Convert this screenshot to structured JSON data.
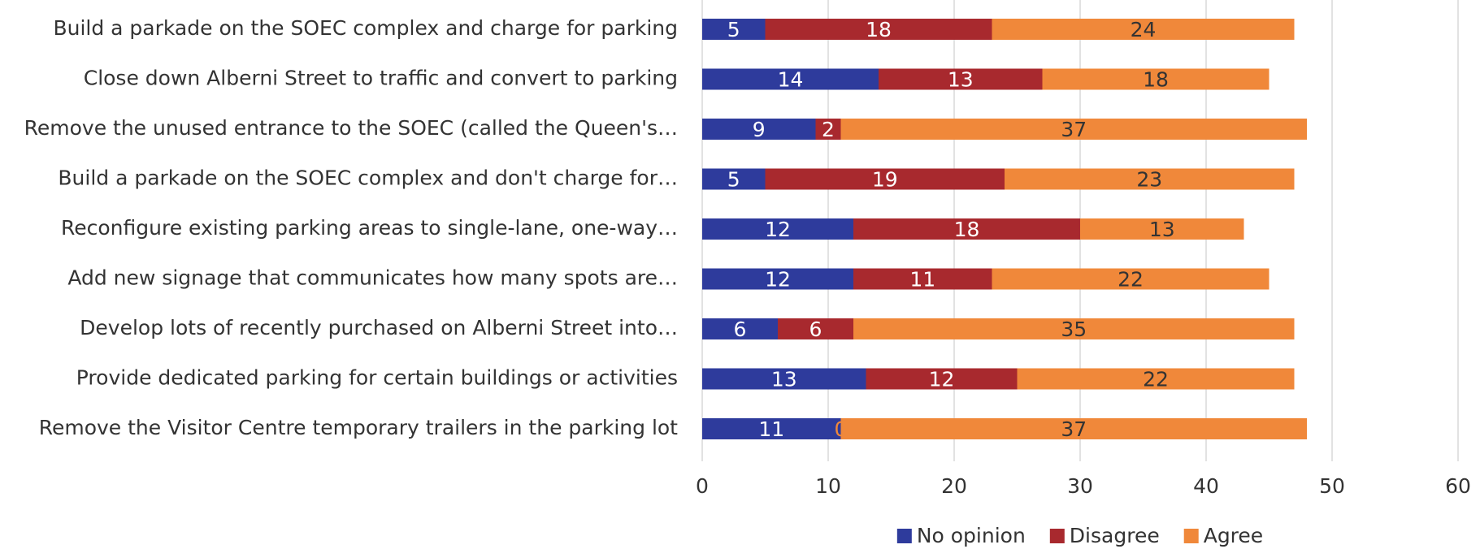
{
  "chart_data": {
    "type": "stacked_barh",
    "categories": [
      "Build a parkade on the SOEC complex and charge for parking",
      "Close down Alberni Street to traffic and convert to parking",
      "Remove the unused entrance to the SOEC (called the Queen's…",
      "Build a parkade on the SOEC complex and don't charge for…",
      "Reconfigure existing parking areas to single-lane, one-way…",
      "Add new signage that communicates how many spots are…",
      "Develop lots of recently purchased on Alberni Street into…",
      "Provide dedicated parking for certain buildings or activities",
      "Remove the Visitor Centre temporary trailers in the parking lot"
    ],
    "series": [
      {
        "name": "No opinion",
        "color": "#2e3b9c",
        "label_color": "#ffffff",
        "values": [
          5,
          14,
          9,
          5,
          12,
          12,
          6,
          13,
          11
        ]
      },
      {
        "name": "Disagree",
        "color": "#a8292e",
        "label_color": "#ffffff",
        "values": [
          18,
          13,
          2,
          19,
          18,
          11,
          6,
          12,
          0
        ]
      },
      {
        "name": "Agree",
        "color": "#f0883a",
        "label_color": "#333333",
        "values": [
          24,
          18,
          37,
          23,
          13,
          22,
          35,
          22,
          37
        ]
      }
    ],
    "xlim": [
      0,
      60
    ],
    "xticks": [
      0,
      10,
      20,
      30,
      40,
      50,
      60
    ],
    "grid": true,
    "legend": "bottom"
  }
}
